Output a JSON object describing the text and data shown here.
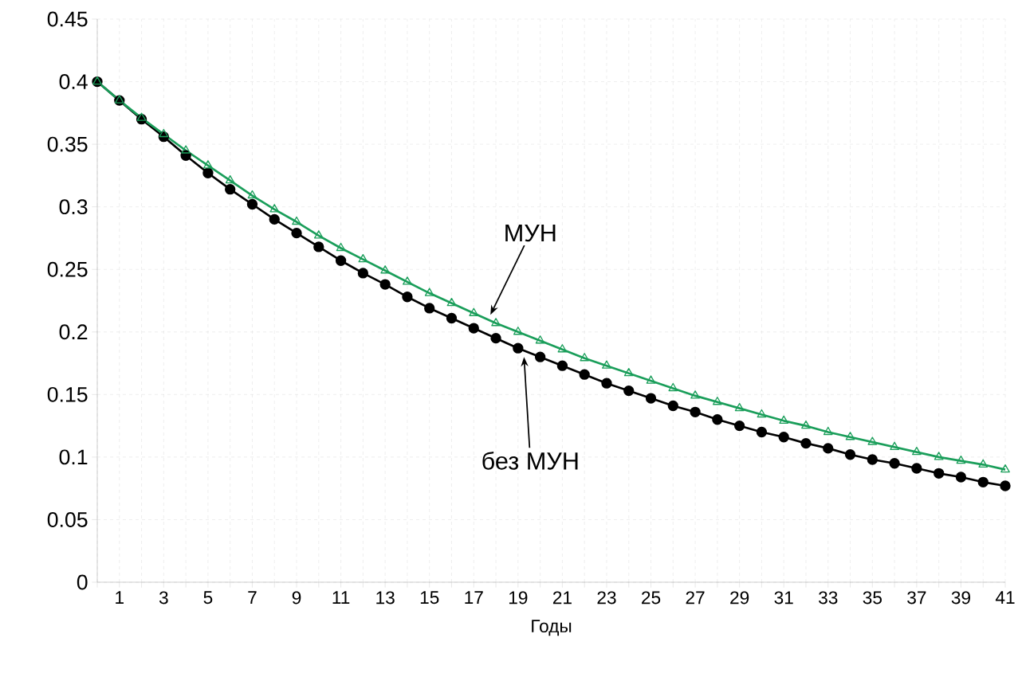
{
  "chart_data": {
    "type": "line",
    "xlabel": "Годы",
    "x": [
      0,
      1,
      2,
      3,
      4,
      5,
      6,
      7,
      8,
      9,
      10,
      11,
      12,
      13,
      14,
      15,
      16,
      17,
      18,
      19,
      20,
      21,
      22,
      23,
      24,
      25,
      26,
      27,
      28,
      29,
      30,
      31,
      32,
      33,
      34,
      35,
      36,
      37,
      38,
      39,
      40,
      41
    ],
    "series": [
      {
        "color": "#000000",
        "marker": "circle",
        "values": [
          0.4,
          0.385,
          0.37,
          0.356,
          0.341,
          0.327,
          0.314,
          0.302,
          0.29,
          0.279,
          0.268,
          0.257,
          0.247,
          0.238,
          0.228,
          0.219,
          0.211,
          0.203,
          0.195,
          0.187,
          0.18,
          0.173,
          0.166,
          0.159,
          0.153,
          0.147,
          0.141,
          0.136,
          0.13,
          0.125,
          0.12,
          0.116,
          0.111,
          0.107,
          0.102,
          0.098,
          0.095,
          0.091,
          0.087,
          0.084,
          0.08,
          0.077
        ]
      },
      {
        "color": "#1a9e5a",
        "marker": "triangle",
        "values": [
          0.4,
          0.385,
          0.371,
          0.358,
          0.345,
          0.333,
          0.321,
          0.309,
          0.298,
          0.288,
          0.277,
          0.267,
          0.258,
          0.249,
          0.24,
          0.231,
          0.223,
          0.215,
          0.207,
          0.2,
          0.193,
          0.186,
          0.179,
          0.173,
          0.167,
          0.161,
          0.155,
          0.149,
          0.144,
          0.139,
          0.134,
          0.129,
          0.125,
          0.12,
          0.116,
          0.112,
          0.108,
          0.104,
          0.1,
          0.097,
          0.094,
          0.09
        ]
      }
    ],
    "xlim": [
      0,
      41
    ],
    "xticks": [
      {
        "value": 0,
        "label": null
      },
      1,
      {
        "value": 2,
        "label": null
      },
      3,
      {
        "value": 4,
        "label": null
      },
      5,
      {
        "value": 6,
        "label": null
      },
      7,
      {
        "value": 8,
        "label": null
      },
      9,
      {
        "value": 10,
        "label": null
      },
      11,
      {
        "value": 12,
        "label": null
      },
      13,
      {
        "value": 14,
        "label": null
      },
      15,
      {
        "value": 16,
        "label": null
      },
      17,
      {
        "value": 18,
        "label": null
      },
      19,
      {
        "value": 20,
        "label": null
      },
      21,
      {
        "value": 22,
        "label": null
      },
      23,
      {
        "value": 24,
        "label": null
      },
      25,
      {
        "value": 26,
        "label": null
      },
      27,
      {
        "value": 28,
        "label": null
      },
      29,
      {
        "value": 30,
        "label": null
      },
      31,
      {
        "value": 32,
        "label": null
      },
      33,
      {
        "value": 34,
        "label": null
      },
      35,
      {
        "value": 36,
        "label": null
      },
      37,
      {
        "value": 38,
        "label": null
      },
      39,
      {
        "value": 40,
        "label": null
      },
      41
    ],
    "ylim": [
      0,
      0.45
    ],
    "yticks": [
      0,
      0.05,
      0.1,
      0.15,
      0.2,
      0.25,
      0.3,
      0.35,
      0.4,
      0.45
    ],
    "grid": true,
    "annotations": [
      "МУН",
      "без МУН"
    ]
  }
}
